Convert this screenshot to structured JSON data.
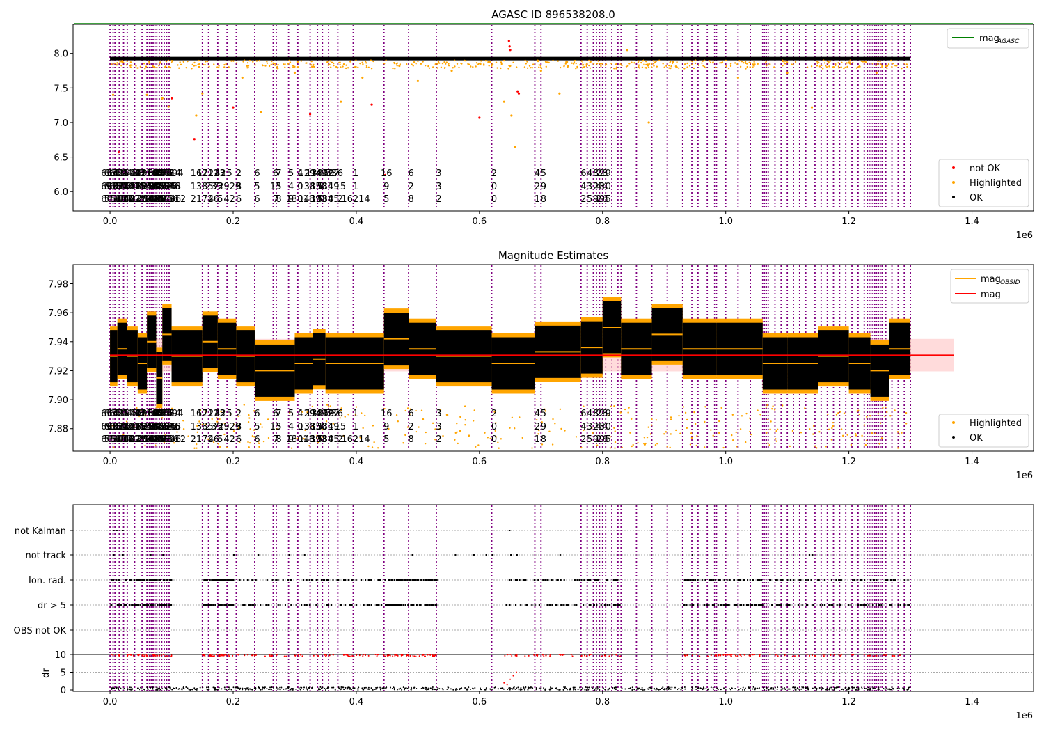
{
  "chart_data": [
    {
      "type": "scatter",
      "title": "AGASC ID 896538208.0",
      "xlabel": "",
      "ylabel": "",
      "xlim": [
        -60000,
        1500000
      ],
      "ylim": [
        5.72,
        8.42
      ],
      "x_tick_labels": [
        "0.0",
        "0.2",
        "0.4",
        "0.6",
        "0.8",
        "1.0",
        "1.2",
        "1.4"
      ],
      "x_ticks": [
        0,
        200000,
        400000,
        600000,
        800000,
        1000000,
        1200000,
        1400000
      ],
      "y_tick_labels": [
        "6.0",
        "6.5",
        "7.0",
        "7.5",
        "8.0"
      ],
      "y_ticks": [
        6.0,
        6.5,
        7.0,
        7.5,
        8.0
      ],
      "x_offset_label": "1e6",
      "legend_position": "upper right + lower right",
      "legend_top": [
        {
          "label": "mag",
          "sub": "AGASC",
          "color": "#008000",
          "kind": "line"
        }
      ],
      "legend_bottom": [
        {
          "label": "not OK",
          "color": "#ff0000",
          "kind": "point"
        },
        {
          "label": "Highlighted",
          "color": "#ffa500",
          "kind": "point"
        },
        {
          "label": "OK",
          "color": "#000000",
          "kind": "point"
        }
      ],
      "mag_agasc": 8.43,
      "ok_band": [
        7.9,
        7.95
      ],
      "series": [
        {
          "name": "not OK",
          "points": [
            [
              14000,
              6.57
            ],
            [
              100000,
              7.35
            ],
            [
              137000,
              6.76
            ],
            [
              200000,
              7.22
            ],
            [
              325000,
              7.12
            ],
            [
              425000,
              7.26
            ],
            [
              447000,
              6.24
            ],
            [
              600000,
              7.07
            ],
            [
              648000,
              8.18
            ],
            [
              649000,
              8.1
            ],
            [
              650000,
              8.05
            ],
            [
              662000,
              7.45
            ],
            [
              664000,
              7.42
            ]
          ]
        },
        {
          "name": "Highlighted",
          "points": [
            [
              5000,
              7.4
            ],
            [
              20000,
              7.88
            ],
            [
              60000,
              7.4
            ],
            [
              72000,
              7.8
            ],
            [
              85000,
              7.35
            ],
            [
              95000,
              7.23
            ],
            [
              140000,
              7.1
            ],
            [
              150000,
              7.42
            ],
            [
              215000,
              7.65
            ],
            [
              245000,
              7.15
            ],
            [
              300000,
              7.72
            ],
            [
              375000,
              7.3
            ],
            [
              410000,
              7.65
            ],
            [
              470000,
              7.82
            ],
            [
              500000,
              7.6
            ],
            [
              555000,
              7.75
            ],
            [
              640000,
              7.3
            ],
            [
              652000,
              7.1
            ],
            [
              658000,
              6.65
            ],
            [
              700000,
              7.75
            ],
            [
              730000,
              7.42
            ],
            [
              840000,
              8.05
            ],
            [
              875000,
              7.0
            ],
            [
              1020000,
              7.65
            ],
            [
              1100000,
              7.72
            ],
            [
              1140000,
              7.22
            ],
            [
              1175000,
              7.8
            ],
            [
              1245000,
              7.72
            ]
          ]
        }
      ],
      "obsid_labels": [
        "6641",
        "6607",
        "6630",
        "6659",
        "6635",
        "5615",
        "1525",
        "9321",
        "6",
        "14394",
        "13854",
        "5477",
        "1",
        "13847",
        "54627",
        "14438",
        "54244",
        "40",
        "4",
        "16154",
        "16213",
        "16963",
        "13858",
        "22041",
        "21142",
        "2124422",
        "2162",
        "2165",
        "5366",
        "29420",
        "30",
        "2238",
        "6685",
        "6",
        "6",
        "0",
        "4",
        "9",
        "8",
        "5",
        "7",
        "11",
        "795",
        "13505",
        "5",
        "275",
        "14392",
        "13856",
        "14414",
        "13848",
        "13846",
        "13494",
        "2",
        "3",
        "3",
        "546",
        "16212",
        "16211",
        "13857",
        "21726",
        "17223",
        "23",
        "4",
        "42",
        "3",
        "5",
        "5",
        "2929",
        "42",
        "2",
        "8",
        "6",
        "6",
        "5",
        "6",
        "6",
        "13",
        "7",
        "7",
        "5",
        "8",
        "5",
        "4",
        "9",
        "4",
        "0",
        "13016",
        "12949",
        "13850",
        "14393",
        "13859",
        "5",
        "5",
        "14427",
        "13849",
        "13845",
        "53",
        "1",
        "0",
        "6",
        "15",
        "2",
        "1",
        "1",
        "16214",
        "16",
        "9",
        "5",
        "6",
        "2",
        "8",
        "3",
        "3",
        "2",
        "2",
        "0",
        "0",
        "4",
        "2",
        "1",
        "5",
        "9",
        "8",
        "6",
        "4",
        "2",
        "4",
        "3",
        "5",
        "8",
        "2",
        "9",
        "2",
        "4",
        "2",
        "2",
        "3",
        "9",
        "8",
        "4",
        "6",
        "9",
        "0",
        "5"
      ]
    },
    {
      "type": "scatter",
      "title": "Magnitude Estimates",
      "xlabel": "",
      "ylabel": "",
      "xlim": [
        -60000,
        1500000
      ],
      "ylim": [
        7.8645,
        7.9932
      ],
      "x_tick_labels": [
        "0.0",
        "0.2",
        "0.4",
        "0.6",
        "0.8",
        "1.0",
        "1.2",
        "1.4"
      ],
      "x_ticks": [
        0,
        200000,
        400000,
        600000,
        800000,
        1000000,
        1200000,
        1400000
      ],
      "y_tick_labels": [
        "7.88",
        "7.90",
        "7.92",
        "7.94",
        "7.96",
        "7.98"
      ],
      "y_ticks": [
        7.88,
        7.9,
        7.92,
        7.94,
        7.96,
        7.98
      ],
      "x_offset_label": "1e6",
      "legend_top": [
        {
          "label": "mag",
          "sub": "OBSID",
          "color": "#ffa500",
          "kind": "line"
        },
        {
          "label": "mag",
          "sub": "",
          "color": "#ff0000",
          "kind": "line"
        }
      ],
      "legend_bottom": [
        {
          "label": "Highlighted",
          "color": "#ffa500",
          "kind": "point"
        },
        {
          "label": "OK",
          "color": "#000000",
          "kind": "point"
        }
      ],
      "mag": 7.9307,
      "mag_band": [
        7.9195,
        7.9419
      ],
      "obsid_segments": [
        {
          "x0": 0,
          "x1": 12000,
          "mag": 7.93
        },
        {
          "x0": 12000,
          "x1": 28000,
          "mag": 7.935
        },
        {
          "x0": 28000,
          "x1": 45000,
          "mag": 7.93
        },
        {
          "x0": 45000,
          "x1": 60000,
          "mag": 7.925
        },
        {
          "x0": 60000,
          "x1": 75000,
          "mag": 7.94
        },
        {
          "x0": 75000,
          "x1": 85000,
          "mag": 7.915
        },
        {
          "x0": 85000,
          "x1": 100000,
          "mag": 7.945
        },
        {
          "x0": 100000,
          "x1": 150000,
          "mag": 7.93
        },
        {
          "x0": 150000,
          "x1": 175000,
          "mag": 7.94
        },
        {
          "x0": 175000,
          "x1": 205000,
          "mag": 7.935
        },
        {
          "x0": 205000,
          "x1": 235000,
          "mag": 7.93
        },
        {
          "x0": 235000,
          "x1": 270000,
          "mag": 7.92
        },
        {
          "x0": 270000,
          "x1": 300000,
          "mag": 7.92
        },
        {
          "x0": 300000,
          "x1": 330000,
          "mag": 7.925
        },
        {
          "x0": 330000,
          "x1": 350000,
          "mag": 7.928
        },
        {
          "x0": 350000,
          "x1": 400000,
          "mag": 7.925
        },
        {
          "x0": 400000,
          "x1": 445000,
          "mag": 7.925
        },
        {
          "x0": 445000,
          "x1": 485000,
          "mag": 7.942
        },
        {
          "x0": 485000,
          "x1": 530000,
          "mag": 7.935
        },
        {
          "x0": 530000,
          "x1": 620000,
          "mag": 7.93
        },
        {
          "x0": 620000,
          "x1": 690000,
          "mag": 7.925
        },
        {
          "x0": 690000,
          "x1": 765000,
          "mag": 7.933
        },
        {
          "x0": 765000,
          "x1": 800000,
          "mag": 7.936
        },
        {
          "x0": 800000,
          "x1": 830000,
          "mag": 7.95
        },
        {
          "x0": 830000,
          "x1": 880000,
          "mag": 7.935
        },
        {
          "x0": 880000,
          "x1": 930000,
          "mag": 7.945
        },
        {
          "x0": 930000,
          "x1": 985000,
          "mag": 7.935
        },
        {
          "x0": 985000,
          "x1": 1060000,
          "mag": 7.935
        },
        {
          "x0": 1060000,
          "x1": 1100000,
          "mag": 7.925
        },
        {
          "x0": 1100000,
          "x1": 1150000,
          "mag": 7.925
        },
        {
          "x0": 1150000,
          "x1": 1200000,
          "mag": 7.93
        },
        {
          "x0": 1200000,
          "x1": 1235000,
          "mag": 7.925
        },
        {
          "x0": 1235000,
          "x1": 1265000,
          "mag": 7.92
        },
        {
          "x0": 1265000,
          "x1": 1300000,
          "mag": 7.935
        }
      ]
    },
    {
      "type": "scatter",
      "title": "",
      "xlabel": "",
      "ylabel": "dr",
      "xlim": [
        -60000,
        1500000
      ],
      "x_tick_labels": [
        "0.0",
        "0.2",
        "0.4",
        "0.6",
        "0.8",
        "1.0",
        "1.2",
        "1.4"
      ],
      "x_ticks": [
        0,
        200000,
        400000,
        600000,
        800000,
        1000000,
        1200000,
        1400000
      ],
      "x_offset_label": "1e6",
      "flag_labels": [
        "not Kalman",
        "not track",
        "Ion. rad.",
        "dr > 5",
        "OBS not OK"
      ],
      "dr_ticks": [
        0,
        5,
        10
      ],
      "dr_tick_labels": [
        "0",
        "5",
        "10"
      ],
      "dr_limit": 10,
      "dr_ylim": [
        -0.5,
        10.5
      ]
    }
  ],
  "colors": {
    "ok": "#000000",
    "highlighted": "#ffa500",
    "not_ok": "#ff0000",
    "agasc_line": "#008000",
    "mag_line": "#ff0000",
    "obsid_line": "#ffa500",
    "obsid_vline": "#800080",
    "band": "#ffcccc"
  },
  "obsid_boundaries": [
    0,
    5000,
    8000,
    15000,
    22000,
    28000,
    40000,
    52000,
    60000,
    64000,
    67000,
    70000,
    73000,
    76000,
    80000,
    84000,
    88000,
    92000,
    96000,
    150000,
    160000,
    175000,
    190000,
    205000,
    235000,
    265000,
    270000,
    290000,
    305000,
    325000,
    337000,
    345000,
    355000,
    370000,
    395000,
    445000,
    485000,
    530000,
    620000,
    690000,
    700000,
    765000,
    775000,
    785000,
    790000,
    795000,
    800000,
    805000,
    815000,
    825000,
    830000,
    855000,
    880000,
    905000,
    930000,
    945000,
    955000,
    970000,
    982000,
    985000,
    1000000,
    1020000,
    1040000,
    1060000,
    1063000,
    1066000,
    1069000,
    1080000,
    1090000,
    1100000,
    1110000,
    1120000,
    1130000,
    1145000,
    1155000,
    1165000,
    1175000,
    1185000,
    1195000,
    1205000,
    1215000,
    1225000,
    1230000,
    1233000,
    1236000,
    1239000,
    1242000,
    1245000,
    1248000,
    1251000,
    1254000,
    1260000,
    1270000,
    1280000,
    1290000,
    1300000
  ]
}
